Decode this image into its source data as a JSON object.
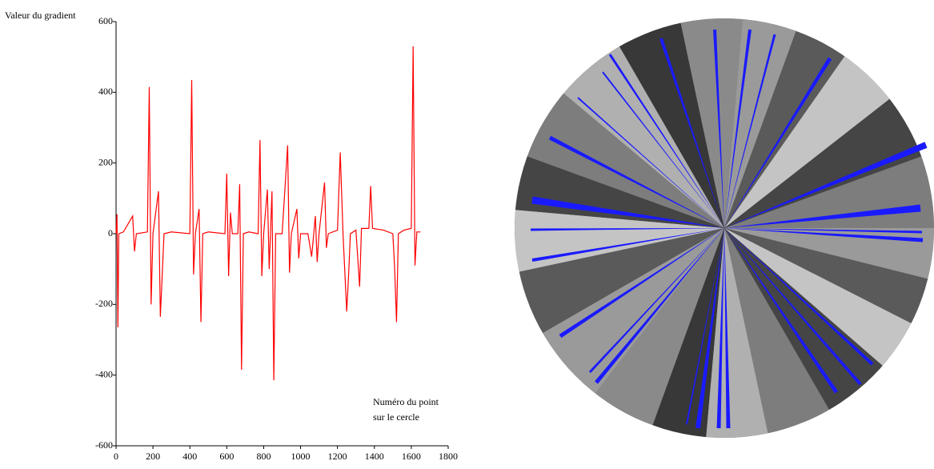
{
  "chart_data": {
    "type": "line",
    "y_label": "Valeur du gradient",
    "x_label": [
      "Numéro du point",
      "sur le cercle"
    ],
    "color": "#ff0000",
    "x": [
      0,
      5,
      10,
      15,
      40,
      90,
      100,
      110,
      170,
      180,
      190,
      200,
      230,
      240,
      250,
      260,
      300,
      400,
      410,
      420,
      430,
      450,
      460,
      470,
      500,
      590,
      600,
      610,
      620,
      630,
      660,
      670,
      680,
      690,
      720,
      770,
      780,
      790,
      800,
      820,
      830,
      845,
      855,
      865,
      900,
      930,
      940,
      950,
      980,
      990,
      1000,
      1040,
      1060,
      1080,
      1090,
      1100,
      1130,
      1140,
      1150,
      1200,
      1215,
      1230,
      1250,
      1260,
      1270,
      1300,
      1320,
      1330,
      1370,
      1380,
      1390,
      1450,
      1500,
      1510,
      1520,
      1530,
      1560,
      1600,
      1610,
      1620,
      1630,
      1650
    ],
    "values": [
      0,
      55,
      -265,
      0,
      5,
      50,
      -50,
      0,
      5,
      415,
      -200,
      0,
      120,
      -235,
      -120,
      0,
      5,
      0,
      435,
      -115,
      0,
      70,
      -250,
      0,
      5,
      0,
      170,
      -120,
      60,
      0,
      0,
      140,
      -385,
      0,
      5,
      0,
      265,
      -120,
      0,
      125,
      -100,
      120,
      -415,
      0,
      0,
      250,
      -110,
      0,
      70,
      -70,
      0,
      0,
      -65,
      50,
      -80,
      0,
      145,
      -40,
      0,
      10,
      230,
      0,
      -220,
      -120,
      0,
      10,
      -150,
      15,
      15,
      135,
      15,
      10,
      0,
      -100,
      -250,
      0,
      10,
      15,
      530,
      -90,
      5,
      5
    ],
    "xlim": [
      0,
      1800
    ],
    "xticks": [
      0,
      200,
      400,
      600,
      800,
      1000,
      1200,
      1400,
      1600,
      1800
    ],
    "ylim": [
      -600,
      600
    ],
    "yticks": [
      -600,
      -400,
      -200,
      0,
      200,
      400,
      600
    ]
  }
}
